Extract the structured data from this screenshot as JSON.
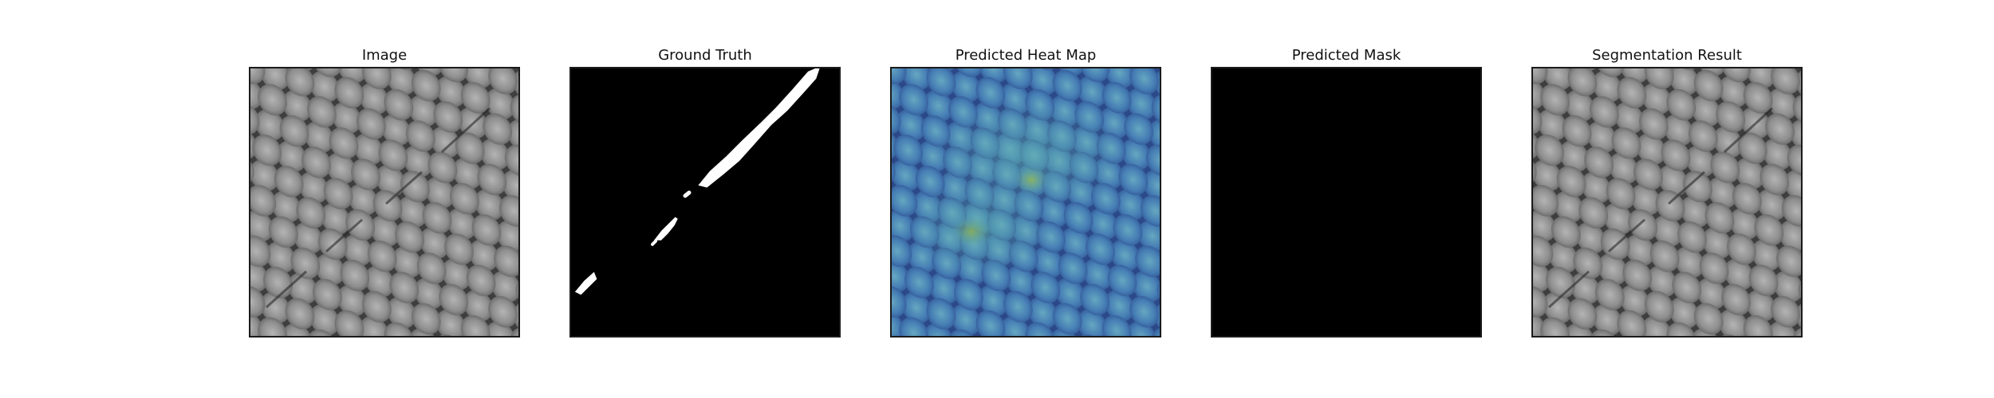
{
  "panels": [
    {
      "title": "Image",
      "kind": "texture"
    },
    {
      "title": "Ground Truth",
      "kind": "ground-truth"
    },
    {
      "title": "Predicted Heat Map",
      "kind": "heatmap"
    },
    {
      "title": "Predicted Mask",
      "kind": "mask"
    },
    {
      "title": "Segmentation Result",
      "kind": "texture"
    }
  ],
  "colors": {
    "mask_background": "#000000",
    "mask_foreground": "#ffffff",
    "heatmap_low": "#3a5fb0",
    "heatmap_mid": "#4fa6b8",
    "heatmap_high": "#8fbf3a",
    "texture_dark": "#3a3a3a",
    "texture_light": "#a8a8a8"
  }
}
